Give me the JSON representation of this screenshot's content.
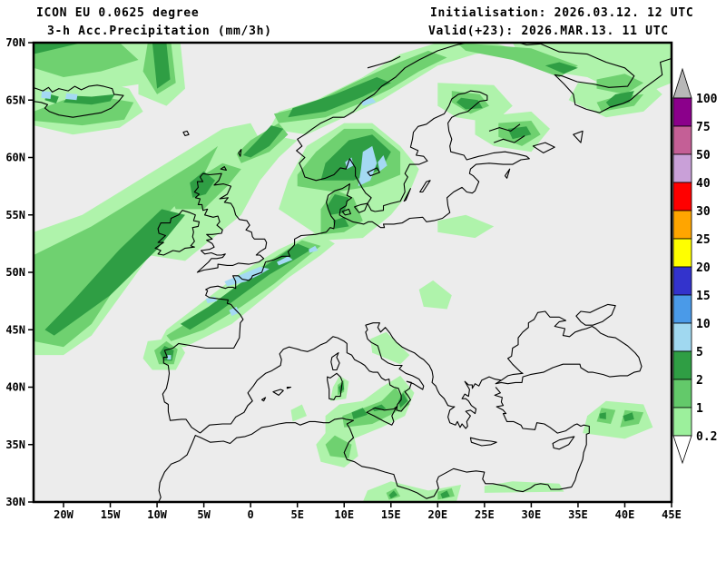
{
  "header": {
    "model_line1": "ICON EU 0.0625 degree",
    "model_line2": "3-h Acc.Precipitation (mm/3h)",
    "init_line": "Initialisation: 2026.03.12. 12 UTC",
    "valid_line": "Valid(+23): 2026.MAR.13. 11 UTC"
  },
  "axes": {
    "lat_labels": [
      "70N",
      "65N",
      "60N",
      "55N",
      "50N",
      "45N",
      "40N",
      "35N",
      "30N"
    ],
    "lon_labels": [
      "20W",
      "15W",
      "10W",
      "5W",
      "0",
      "5E",
      "10E",
      "15E",
      "20E",
      "25E",
      "30E",
      "35E",
      "40E",
      "45E"
    ]
  },
  "legend": {
    "unit_implied": "mm/3h",
    "boundary_labels": [
      "100",
      "75",
      "50",
      "40",
      "30",
      "25",
      "20",
      "15",
      "10",
      "5",
      "2",
      "1",
      "0.2"
    ],
    "box_colors_top_to_bottom": [
      "#8b008b",
      "#c45f96",
      "#c9a0d8",
      "#ff0000",
      "#ffa500",
      "#ffff00",
      "#3333cc",
      "#4a9ae8",
      "#a0d8f0",
      "#2f9e44",
      "#63c96a",
      "#9cf09c"
    ],
    "over_color": "#b8b8b8",
    "under_color": "#ffffff"
  },
  "map": {
    "background": "#ececec",
    "coast_color": "#000000",
    "precip_light": "#aff3ab",
    "precip_medium": "#6fd170",
    "precip_dark": "#2f9e44",
    "precip_blue": "#a4d9f3"
  }
}
